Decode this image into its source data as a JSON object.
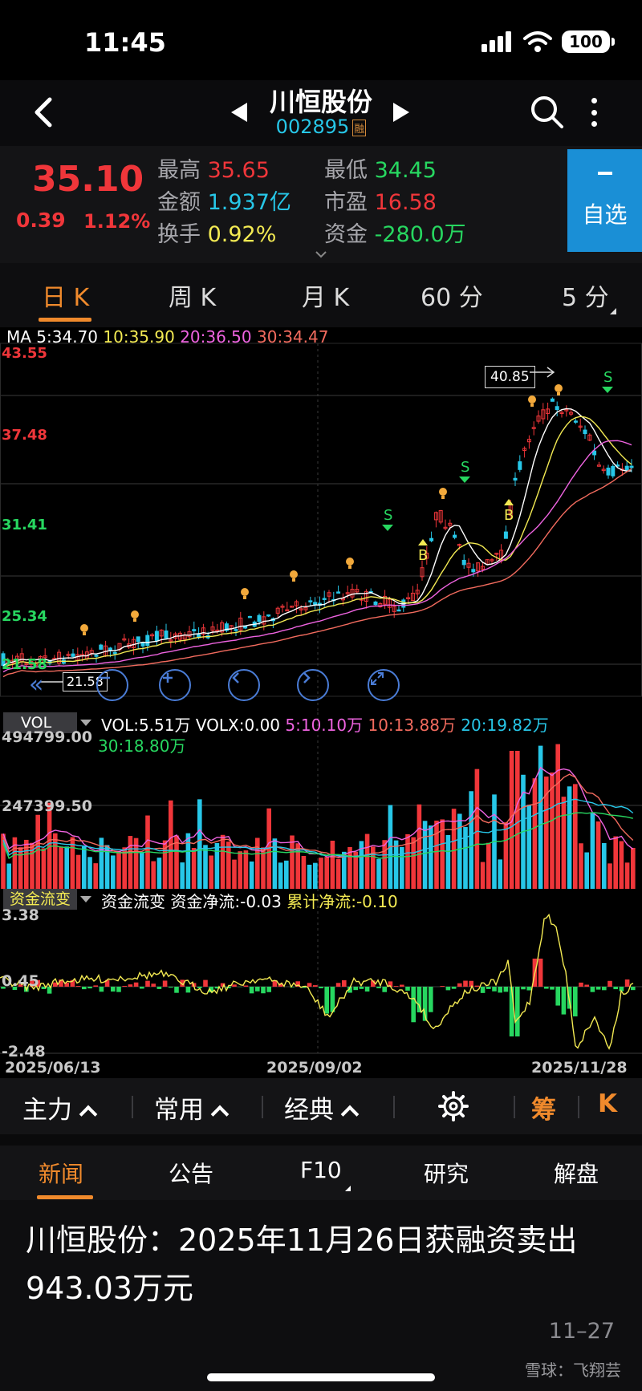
{
  "status_bar": {
    "time": "11:45",
    "battery": "100"
  },
  "nav": {
    "title": "川恒股份",
    "code": "002895",
    "tag": "融"
  },
  "quote": {
    "price": "35.10",
    "change": "0.39",
    "change_pct": "1.12%",
    "high_label": "最高",
    "high": "35.65",
    "low_label": "最低",
    "low": "34.45",
    "amount_label": "金额",
    "amount": "1.937亿",
    "pe_label": "市盈",
    "pe": "16.58",
    "turnover_label": "换手",
    "turnover": "0.92%",
    "fund_label": "资金",
    "fund": "-280.0万",
    "watch_label": "自选"
  },
  "period_tabs": [
    {
      "label": "日 K",
      "active": true
    },
    {
      "label": "周 K",
      "active": false
    },
    {
      "label": "月 K",
      "active": false
    },
    {
      "label": "60 分",
      "active": false
    },
    {
      "label": "5 分",
      "active": false
    }
  ],
  "kline": {
    "ma_legend": {
      "title": "MA",
      "ma5": "5:34.70",
      "ma10": "10:35.90",
      "ma20": "20:36.50",
      "ma30": "30:34.47"
    },
    "price_ticks": [
      "43.55",
      "37.48",
      "31.41",
      "25.34",
      "21.58"
    ],
    "period_high": "40.85",
    "period_low": "21.58",
    "signal_sell": "S",
    "signal_buy": "B"
  },
  "volume": {
    "tag": "VOL",
    "legend": {
      "vol": "VOL:5.51万",
      "volx": "VOLX:0.00",
      "ma5": "5:10.10万",
      "ma10": "10:13.88万",
      "ma20": "20:19.82万",
      "ma30": "30:18.80万"
    },
    "ticks": [
      "494799.00",
      "247399.50"
    ]
  },
  "fund_flow": {
    "tag": "资金流变",
    "legend": {
      "name": "资金流变",
      "net": "资金净流:-0.03",
      "cum": "累计净流:-0.10"
    },
    "ticks": [
      "3.38",
      "0.45",
      "-2.48"
    ],
    "dates": [
      "2025/06/13",
      "2025/09/02",
      "2025/11/28"
    ]
  },
  "indicator_bar": {
    "items": [
      "主力",
      "常用",
      "经典"
    ],
    "chip": "筹",
    "k": "K"
  },
  "news_tabs": [
    {
      "label": "新闻",
      "active": true
    },
    {
      "label": "公告",
      "active": false
    },
    {
      "label": "F10",
      "active": false
    },
    {
      "label": "研究",
      "active": false
    },
    {
      "label": "解盘",
      "active": false
    }
  ],
  "news": {
    "headline": "川恒股份：2025年11月26日获融资卖出943.03万元",
    "date": "11–27",
    "footer": "雪球：飞翔芸"
  },
  "colors": {
    "up": "#f0363a",
    "down": "#27c7e8",
    "accent": "#f08a2c",
    "ma5": "#ffffff",
    "ma10": "#f3ea53",
    "ma20": "#ee63e0",
    "ma30": "#f26b5e"
  }
}
